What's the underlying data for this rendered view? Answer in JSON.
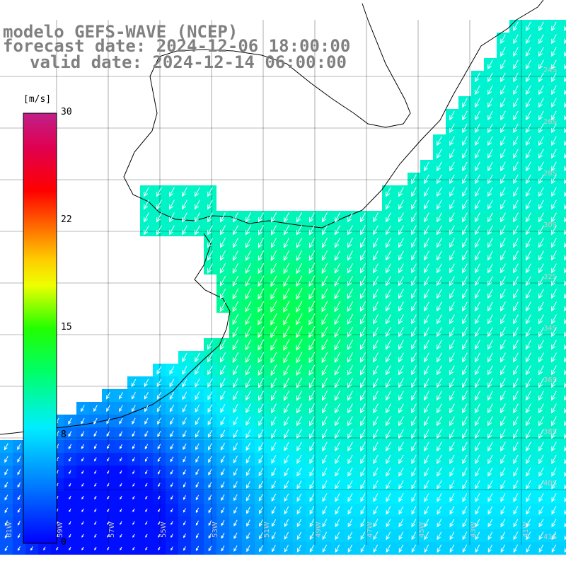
{
  "title": {
    "model": "modelo GEFS-WAVE (NCEP)",
    "forecast": "forecast date: 2024-12-06 18:00:00",
    "valid": "valid date: 2024-12-14 06:00:00"
  },
  "colorbar": {
    "unit": "[m/s]",
    "ticks": [
      "30",
      "22",
      "15",
      "8",
      "0"
    ],
    "tick_values": [
      30,
      22,
      15,
      8,
      0
    ],
    "colors": [
      "#0000ff",
      "#0077ff",
      "#00ddff",
      "#00ff66",
      "#22ff00",
      "#ccff00",
      "#ffff00",
      "#ffa000",
      "#ff4000",
      "#ff0000",
      "#d00070",
      "#c0208a"
    ]
  },
  "lon_labels": [
    "61W",
    "59W",
    "57W",
    "55W",
    "53W",
    "51W",
    "49W",
    "47W",
    "45W",
    "43W",
    "41W"
  ],
  "lat_labels": [
    "24S",
    "26S",
    "28S",
    "30S",
    "32S",
    "34S",
    "36S",
    "38S",
    "40S",
    "41S"
  ],
  "field": {
    "variable": "wind speed",
    "unit": "m/s",
    "wind_direction": "from NE toward SW",
    "speed_range": [
      0,
      30
    ],
    "max_area": "≈12–13 m/s off Uruguay coast",
    "min_area": "≈0–2 m/s southwest corner"
  }
}
